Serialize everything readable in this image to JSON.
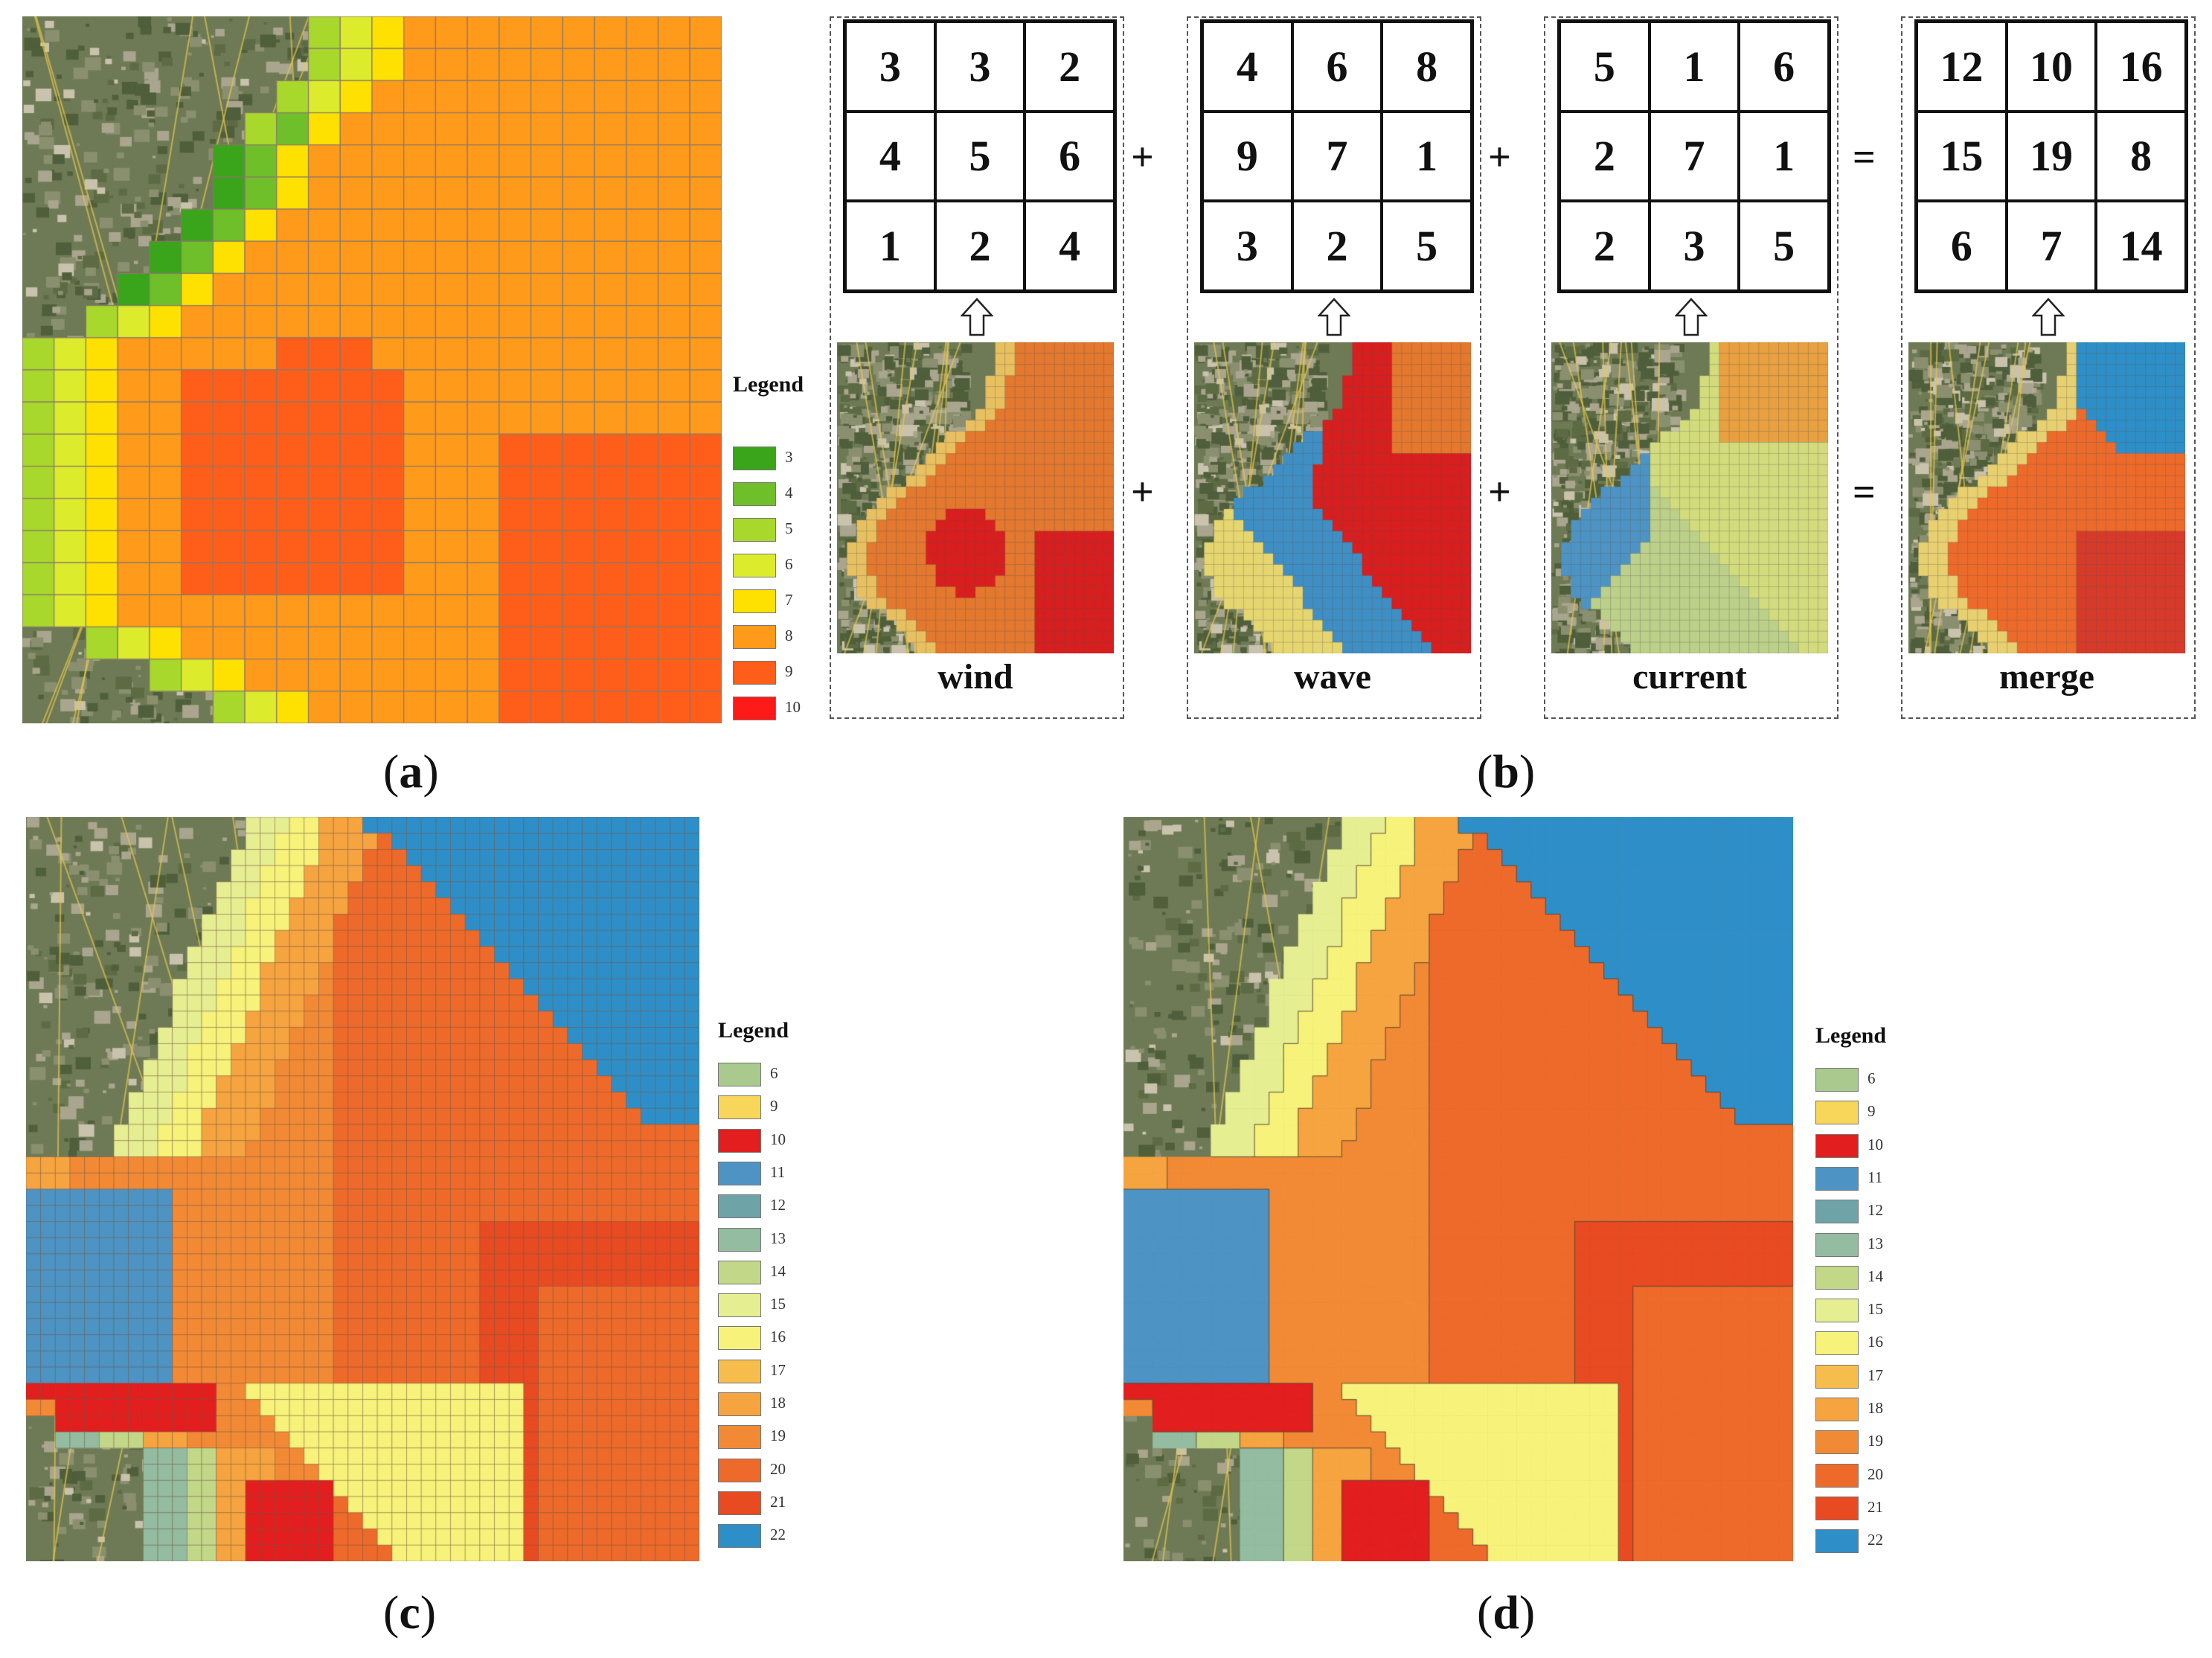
{
  "captions": {
    "a": "a",
    "b": "b",
    "c": "c",
    "d": "d"
  },
  "panel_a": {
    "legend_title": "Legend",
    "legend": [
      {
        "value": "3",
        "color": "#3aa41b"
      },
      {
        "value": "4",
        "color": "#6fbf2a"
      },
      {
        "value": "5",
        "color": "#a8d82b"
      },
      {
        "value": "6",
        "color": "#dcec2c"
      },
      {
        "value": "7",
        "color": "#ffe100"
      },
      {
        "value": "8",
        "color": "#ff9a1a"
      },
      {
        "value": "9",
        "color": "#ff5e1a"
      },
      {
        "value": "10",
        "color": "#ff1a1a"
      }
    ]
  },
  "panel_b": {
    "grids": [
      {
        "name": "wind",
        "cells": [
          "3",
          "3",
          "2",
          "4",
          "5",
          "6",
          "1",
          "2",
          "4"
        ]
      },
      {
        "name": "wave",
        "cells": [
          "4",
          "6",
          "8",
          "9",
          "7",
          "1",
          "3",
          "2",
          "5"
        ]
      },
      {
        "name": "current",
        "cells": [
          "5",
          "1",
          "6",
          "2",
          "7",
          "1",
          "2",
          "3",
          "5"
        ]
      },
      {
        "name": "merge",
        "cells": [
          "12",
          "10",
          "16",
          "15",
          "19",
          "8",
          "6",
          "7",
          "14"
        ]
      }
    ],
    "ops_top": [
      "+",
      "+",
      "="
    ],
    "ops_bottom": [
      "+",
      "+",
      "="
    ]
  },
  "panel_cd": {
    "legend_title": "Legend",
    "legend": [
      {
        "value": "6",
        "color": "#a9c98f"
      },
      {
        "value": "9",
        "color": "#f8d65a"
      },
      {
        "value": "10",
        "color": "#e21e1e"
      },
      {
        "value": "11",
        "color": "#4d94c4"
      },
      {
        "value": "12",
        "color": "#6ea3a8"
      },
      {
        "value": "13",
        "color": "#93bca0"
      },
      {
        "value": "14",
        "color": "#c2d888"
      },
      {
        "value": "15",
        "color": "#e6ee92"
      },
      {
        "value": "16",
        "color": "#f6f27a"
      },
      {
        "value": "17",
        "color": "#f7bd4c"
      },
      {
        "value": "18",
        "color": "#f6a440"
      },
      {
        "value": "19",
        "color": "#f28a35"
      },
      {
        "value": "20",
        "color": "#ee6a2a"
      },
      {
        "value": "21",
        "color": "#e84a22"
      },
      {
        "value": "22",
        "color": "#2e8fc8"
      }
    ]
  }
}
